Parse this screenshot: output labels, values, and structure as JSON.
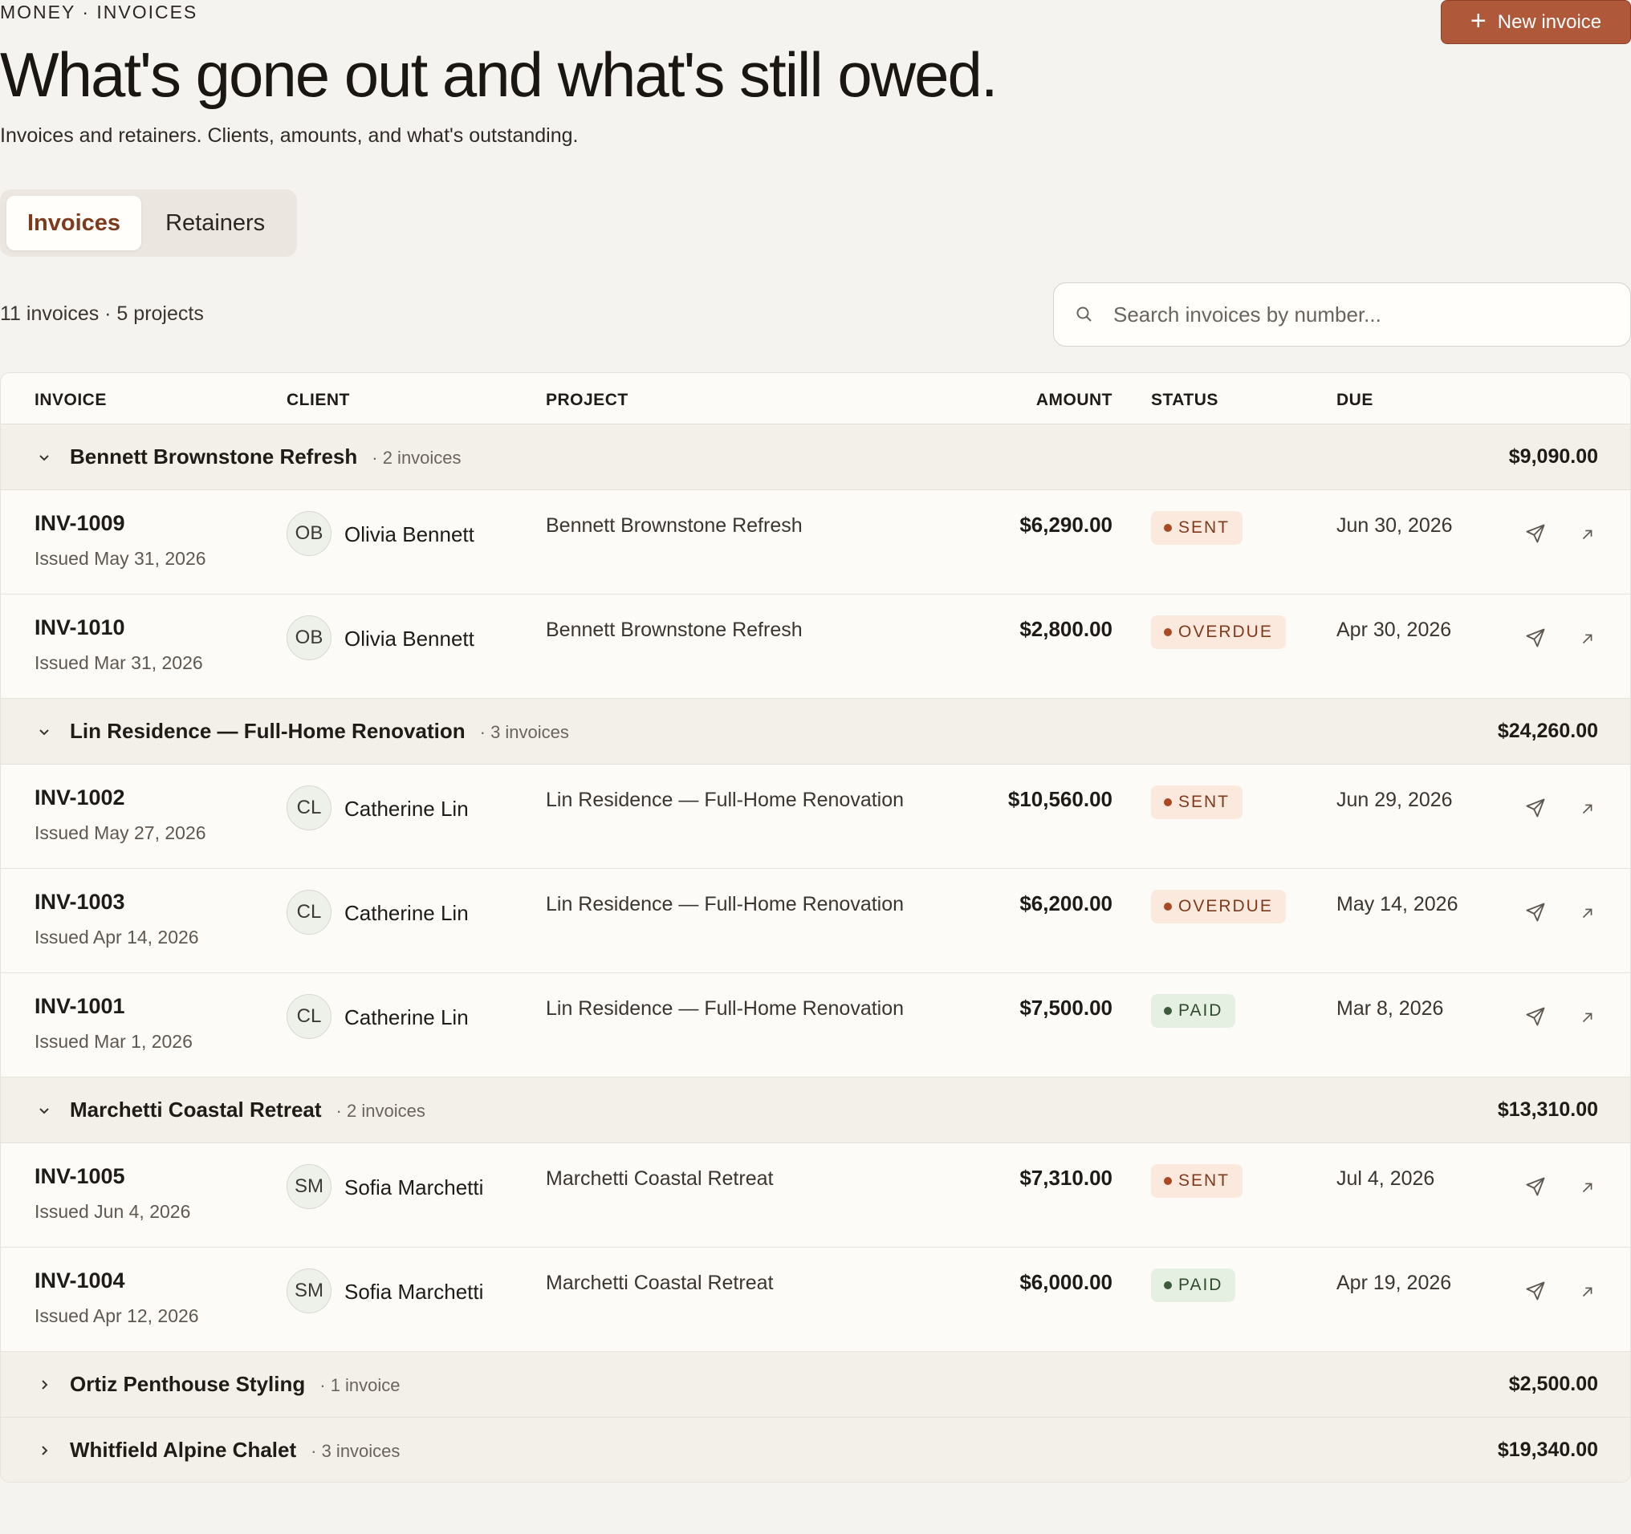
{
  "breadcrumb": "MONEY · INVOICES",
  "new_button": "New invoice",
  "title": "What's gone out and what's still owed.",
  "subtitle": "Invoices and retainers. Clients, amounts, and what's outstanding.",
  "tabs": [
    {
      "label": "Invoices",
      "active": true
    },
    {
      "label": "Retainers",
      "active": false
    }
  ],
  "summary": "11 invoices · 5 projects",
  "search": {
    "placeholder": "Search invoices by number..."
  },
  "columns": {
    "invoice": "INVOICE",
    "client": "CLIENT",
    "project": "PROJECT",
    "amount": "AMOUNT",
    "status": "STATUS",
    "due": "DUE"
  },
  "groups": [
    {
      "name": "Bennett Brownstone Refresh",
      "count": "· 2 invoices",
      "total": "$9,090.00",
      "expanded": true,
      "rows": [
        {
          "number": "INV-1009",
          "issued": "Issued May 31, 2026",
          "initials": "OB",
          "client": "Olivia Bennett",
          "project": "Bennett Brownstone Refresh",
          "amount": "$6,290.00",
          "status": "SENT",
          "due": "Jun 30, 2026"
        },
        {
          "number": "INV-1010",
          "issued": "Issued Mar 31, 2026",
          "initials": "OB",
          "client": "Olivia Bennett",
          "project": "Bennett Brownstone Refresh",
          "amount": "$2,800.00",
          "status": "OVERDUE",
          "due": "Apr 30, 2026"
        }
      ]
    },
    {
      "name": "Lin Residence — Full-Home Renovation",
      "count": "· 3 invoices",
      "total": "$24,260.00",
      "expanded": true,
      "rows": [
        {
          "number": "INV-1002",
          "issued": "Issued May 27, 2026",
          "initials": "CL",
          "client": "Catherine Lin",
          "project": "Lin Residence — Full-Home Renovation",
          "amount": "$10,560.00",
          "status": "SENT",
          "due": "Jun 29, 2026"
        },
        {
          "number": "INV-1003",
          "issued": "Issued Apr 14, 2026",
          "initials": "CL",
          "client": "Catherine Lin",
          "project": "Lin Residence — Full-Home Renovation",
          "amount": "$6,200.00",
          "status": "OVERDUE",
          "due": "May 14, 2026"
        },
        {
          "number": "INV-1001",
          "issued": "Issued Mar 1, 2026",
          "initials": "CL",
          "client": "Catherine Lin",
          "project": "Lin Residence — Full-Home Renovation",
          "amount": "$7,500.00",
          "status": "PAID",
          "due": "Mar 8, 2026"
        }
      ]
    },
    {
      "name": "Marchetti Coastal Retreat",
      "count": "· 2 invoices",
      "total": "$13,310.00",
      "expanded": true,
      "rows": [
        {
          "number": "INV-1005",
          "issued": "Issued Jun 4, 2026",
          "initials": "SM",
          "client": "Sofia Marchetti",
          "project": "Marchetti Coastal Retreat",
          "amount": "$7,310.00",
          "status": "SENT",
          "due": "Jul 4, 2026"
        },
        {
          "number": "INV-1004",
          "issued": "Issued Apr 12, 2026",
          "initials": "SM",
          "client": "Sofia Marchetti",
          "project": "Marchetti Coastal Retreat",
          "amount": "$6,000.00",
          "status": "PAID",
          "due": "Apr 19, 2026"
        }
      ]
    },
    {
      "name": "Ortiz Penthouse Styling",
      "count": "· 1 invoice",
      "total": "$2,500.00",
      "expanded": false,
      "rows": []
    },
    {
      "name": "Whitfield Alpine Chalet",
      "count": "· 3 invoices",
      "total": "$19,340.00",
      "expanded": false,
      "rows": []
    }
  ]
}
